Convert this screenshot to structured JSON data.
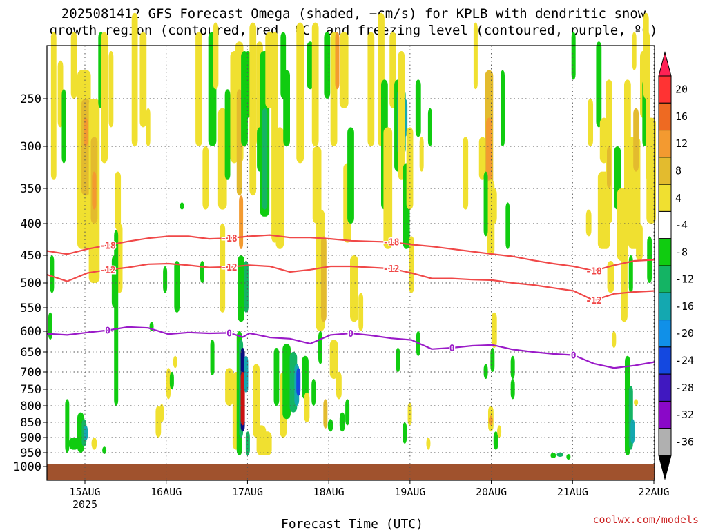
{
  "title": {
    "line1": "2025081412 GFS Forecast Omega (shaded, −cm/s) for KPLB with dendritic snow",
    "line2": "growth region (contoured, red, ºC) and freezing level (contoured, purple, ºC)"
  },
  "credit": "coolwx.com/models",
  "chart_data": {
    "type": "heatmap",
    "xlabel": "Forecast Time (UTC)",
    "ylabel": "",
    "x_start_hours": 0,
    "x_end_hours": 180,
    "x_ticks": [
      {
        "label": "15AUG",
        "sub": "2025",
        "hours": 12
      },
      {
        "label": "16AUG",
        "sub": "",
        "hours": 36
      },
      {
        "label": "17AUG",
        "sub": "",
        "hours": 60
      },
      {
        "label": "18AUG",
        "sub": "",
        "hours": 84
      },
      {
        "label": "19AUG",
        "sub": "",
        "hours": 108
      },
      {
        "label": "20AUG",
        "sub": "",
        "hours": 132
      },
      {
        "label": "21AUG",
        "sub": "",
        "hours": 156
      },
      {
        "label": "22AUG",
        "sub": "",
        "hours": 180
      }
    ],
    "y_ticks": [
      "250",
      "300",
      "350",
      "400",
      "450",
      "500",
      "550",
      "600",
      "650",
      "700",
      "750",
      "800",
      "850",
      "900",
      "950",
      "1000"
    ],
    "y_range_hpa": [
      200,
      1040
    ],
    "grid": true,
    "colorbar": {
      "labels": [
        "20",
        "16",
        "12",
        "8",
        "4",
        "-4",
        "-8",
        "-12",
        "-16",
        "-20",
        "-24",
        "-28",
        "-32",
        "-36"
      ],
      "colors": [
        "#ff2255",
        "#ff3333",
        "#ee6a22",
        "#f39a30",
        "#e3bb2e",
        "#f0e030",
        "#ffffff",
        "#10cc10",
        "#14b464",
        "#14a8b0",
        "#1090e8",
        "#1448e0",
        "#4018c0",
        "#8a08c8",
        "#b0b0b0",
        "#000000"
      ]
    },
    "omega_colors": {
      "pos4": "#f0e030",
      "pos8": "#e3bb2e",
      "pos12": "#f39a30",
      "pos16": "#ee6a22",
      "neg4": "#10cc10",
      "neg8": "#14b464",
      "neg12": "#14a8b0",
      "neg16": "#1090e8",
      "neg20": "#1448e0",
      "neg24": "#0a0a80",
      "neg28": "#6010b0",
      "neg32": "#cc1010"
    },
    "terrain_color": "#a0522d",
    "contours": [
      {
        "label": "-18",
        "color": "#f04848",
        "points": [
          [
            0,
            443
          ],
          [
            6,
            448
          ],
          [
            12,
            440
          ],
          [
            18,
            434
          ],
          [
            24,
            428
          ],
          [
            30,
            423
          ],
          [
            36,
            420
          ],
          [
            42,
            420
          ],
          [
            48,
            424
          ],
          [
            54,
            423
          ],
          [
            60,
            420
          ],
          [
            66,
            418
          ],
          [
            72,
            422
          ],
          [
            78,
            422
          ],
          [
            84,
            424
          ],
          [
            90,
            427
          ],
          [
            96,
            428
          ],
          [
            102,
            429
          ],
          [
            108,
            433
          ],
          [
            114,
            436
          ],
          [
            120,
            440
          ],
          [
            126,
            444
          ],
          [
            132,
            448
          ],
          [
            138,
            452
          ],
          [
            144,
            459
          ],
          [
            150,
            465
          ],
          [
            156,
            470
          ],
          [
            162,
            478
          ],
          [
            168,
            468
          ],
          [
            174,
            460
          ],
          [
            180,
            458
          ]
        ]
      },
      {
        "label": "-12",
        "color": "#f04848",
        "points": [
          [
            0,
            485
          ],
          [
            6,
            497
          ],
          [
            12,
            482
          ],
          [
            18,
            476
          ],
          [
            24,
            472
          ],
          [
            30,
            466
          ],
          [
            36,
            465
          ],
          [
            42,
            468
          ],
          [
            48,
            472
          ],
          [
            54,
            471
          ],
          [
            60,
            468
          ],
          [
            66,
            470
          ],
          [
            72,
            480
          ],
          [
            78,
            476
          ],
          [
            84,
            470
          ],
          [
            90,
            470
          ],
          [
            96,
            472
          ],
          [
            102,
            474
          ],
          [
            108,
            482
          ],
          [
            114,
            492
          ],
          [
            120,
            492
          ],
          [
            126,
            494
          ],
          [
            132,
            495
          ],
          [
            138,
            500
          ],
          [
            144,
            504
          ],
          [
            150,
            510
          ],
          [
            156,
            516
          ],
          [
            162,
            535
          ],
          [
            168,
            522
          ],
          [
            174,
            518
          ],
          [
            180,
            516
          ]
        ]
      },
      {
        "label": "0",
        "color": "#9a1ac8",
        "points": [
          [
            0,
            606
          ],
          [
            6,
            609
          ],
          [
            12,
            603
          ],
          [
            18,
            598
          ],
          [
            24,
            591
          ],
          [
            30,
            593
          ],
          [
            36,
            607
          ],
          [
            42,
            603
          ],
          [
            48,
            605
          ],
          [
            54,
            604
          ],
          [
            58,
            614
          ],
          [
            60,
            605
          ],
          [
            62,
            608
          ],
          [
            66,
            615
          ],
          [
            72,
            618
          ],
          [
            78,
            630
          ],
          [
            84,
            609
          ],
          [
            90,
            605
          ],
          [
            96,
            610
          ],
          [
            102,
            617
          ],
          [
            108,
            621
          ],
          [
            114,
            643
          ],
          [
            120,
            640
          ],
          [
            126,
            635
          ],
          [
            132,
            633
          ],
          [
            138,
            644
          ],
          [
            144,
            650
          ],
          [
            150,
            655
          ],
          [
            156,
            658
          ],
          [
            162,
            679
          ],
          [
            168,
            690
          ],
          [
            174,
            684
          ],
          [
            180,
            675
          ]
        ]
      }
    ]
  }
}
